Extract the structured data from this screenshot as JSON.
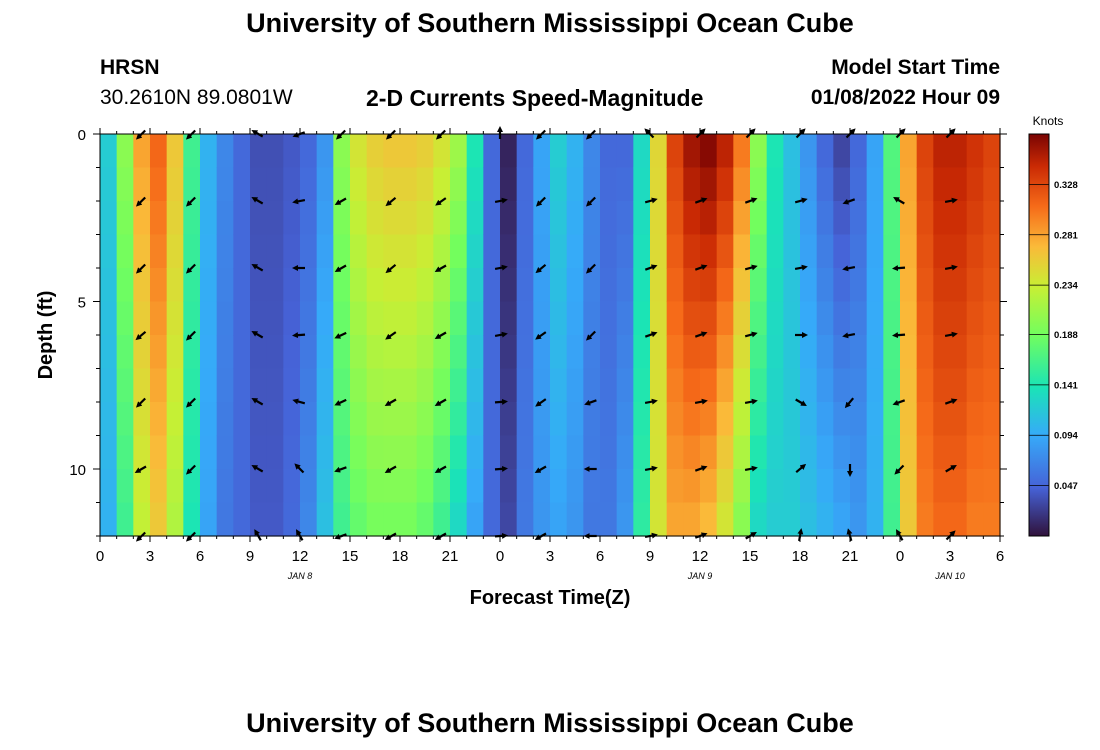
{
  "page": {
    "title": "University of Southern Mississippi Ocean Cube",
    "bottom_title": "University of Southern Mississippi Ocean Cube",
    "station": "HRSN",
    "coords": "30.2610N  89.0801W",
    "subtitle": "2-D Currents Speed-Magnitude",
    "model_label": "Model Start Time",
    "model_time": "01/08/2022 Hour 09"
  },
  "chart_data": {
    "type": "heatmap",
    "title": "2-D Currents Speed-Magnitude",
    "xlabel": "Forecast Time(Z)",
    "ylabel": "Depth (ft)",
    "x_tick_labels": [
      "0",
      "3",
      "6",
      "9",
      "12",
      "15",
      "18",
      "21",
      "0",
      "3",
      "6",
      "9",
      "12",
      "15",
      "18",
      "21",
      "0",
      "3",
      "6"
    ],
    "x_ticks_hours": [
      0,
      3,
      6,
      9,
      12,
      15,
      18,
      21,
      24,
      27,
      30,
      33,
      36,
      39,
      42,
      45,
      48,
      51,
      54
    ],
    "xlim_hours": [
      0,
      54
    ],
    "date_labels": [
      {
        "text": "JAN 8",
        "hour": 12
      },
      {
        "text": "JAN 9",
        "hour": 36
      },
      {
        "text": "JAN 10",
        "hour": 51
      }
    ],
    "y_ticks": [
      0,
      5,
      10
    ],
    "ylim": [
      0,
      12
    ],
    "colorbar": {
      "label": "Knots",
      "ticks": [
        0.047,
        0.094,
        0.141,
        0.188,
        0.234,
        0.281,
        0.328
      ],
      "range": [
        0,
        0.375
      ]
    },
    "speed_columns_hours": [
      0,
      1,
      2,
      3,
      4,
      5,
      6,
      7,
      8,
      9,
      10,
      11,
      12,
      13,
      14,
      15,
      16,
      17,
      18,
      19,
      20,
      21,
      22,
      23,
      24,
      25,
      26,
      27,
      28,
      29,
      30,
      31,
      32,
      33,
      34,
      35,
      36,
      37,
      38,
      39,
      40,
      41,
      42,
      43,
      44,
      45,
      46,
      47,
      48,
      49,
      50,
      51,
      52,
      53
    ],
    "speed_profile_surface": [
      0.12,
      0.2,
      0.28,
      0.31,
      0.26,
      0.16,
      0.1,
      0.07,
      0.05,
      0.035,
      0.035,
      0.04,
      0.05,
      0.08,
      0.2,
      0.24,
      0.255,
      0.26,
      0.26,
      0.255,
      0.24,
      0.21,
      0.14,
      0.05,
      0.01,
      0.05,
      0.09,
      0.12,
      0.1,
      0.07,
      0.05,
      0.05,
      0.13,
      0.25,
      0.33,
      0.36,
      0.37,
      0.35,
      0.3,
      0.2,
      0.14,
      0.11,
      0.08,
      0.05,
      0.03,
      0.05,
      0.09,
      0.17,
      0.28,
      0.33,
      0.35,
      0.35,
      0.34,
      0.33
    ],
    "speed_profile_bottom": [
      0.1,
      0.16,
      0.23,
      0.26,
      0.22,
      0.14,
      0.09,
      0.06,
      0.05,
      0.04,
      0.04,
      0.05,
      0.07,
      0.11,
      0.16,
      0.18,
      0.19,
      0.19,
      0.19,
      0.18,
      0.16,
      0.13,
      0.09,
      0.05,
      0.03,
      0.06,
      0.08,
      0.09,
      0.08,
      0.06,
      0.06,
      0.08,
      0.15,
      0.24,
      0.28,
      0.28,
      0.27,
      0.24,
      0.2,
      0.13,
      0.12,
      0.12,
      0.11,
      0.1,
      0.09,
      0.08,
      0.1,
      0.16,
      0.26,
      0.3,
      0.31,
      0.31,
      0.3,
      0.3
    ],
    "arrow_hours": [
      2.5,
      5.5,
      9.5,
      12,
      14.5,
      17.5,
      20.5,
      24,
      26.5,
      29.5,
      33,
      36,
      39,
      42,
      45,
      48,
      51
    ],
    "arrow_depths": [
      0,
      2,
      4,
      6,
      8,
      10,
      12
    ],
    "arrow_directions_deg": [
      [
        225,
        225,
        300,
        250,
        225,
        225,
        225,
        0,
        225,
        225,
        315,
        45,
        45,
        45,
        45,
        45,
        45
      ],
      [
        225,
        225,
        300,
        260,
        240,
        230,
        235,
        80,
        225,
        225,
        75,
        70,
        70,
        75,
        250,
        300,
        80
      ],
      [
        225,
        225,
        300,
        270,
        240,
        230,
        240,
        80,
        230,
        225,
        70,
        70,
        75,
        80,
        260,
        265,
        80
      ],
      [
        230,
        225,
        300,
        265,
        245,
        235,
        240,
        80,
        235,
        225,
        70,
        70,
        75,
        90,
        260,
        265,
        80
      ],
      [
        225,
        225,
        300,
        285,
        245,
        240,
        240,
        85,
        235,
        250,
        80,
        80,
        80,
        120,
        220,
        250,
        70
      ],
      [
        240,
        225,
        300,
        315,
        250,
        240,
        240,
        85,
        240,
        270,
        80,
        70,
        80,
        50,
        180,
        225,
        60
      ],
      [
        225,
        225,
        330,
        330,
        250,
        240,
        240,
        85,
        240,
        270,
        80,
        70,
        60,
        10,
        345,
        330,
        45
      ]
    ]
  }
}
